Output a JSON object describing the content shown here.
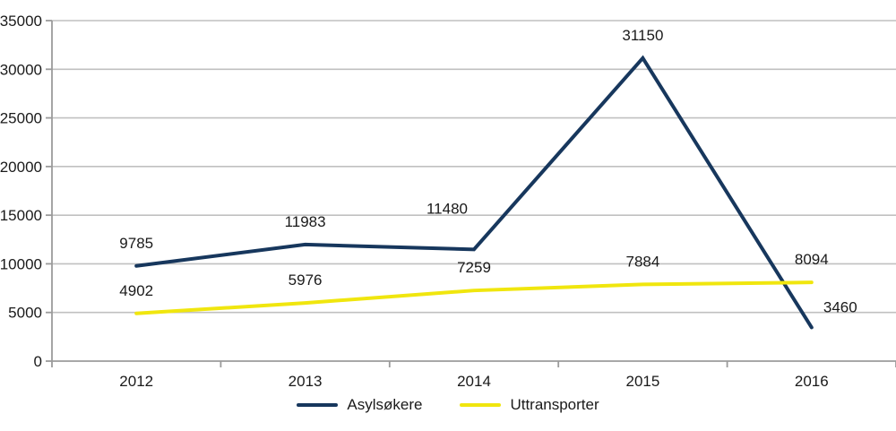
{
  "chart_data": {
    "type": "line",
    "categories": [
      "2012",
      "2013",
      "2014",
      "2015",
      "2016"
    ],
    "series": [
      {
        "name": "Asylsøkere",
        "values": [
          9785,
          11983,
          11480,
          31150,
          3460
        ],
        "color": "#17375D"
      },
      {
        "name": "Uttransporter",
        "values": [
          4902,
          5976,
          7259,
          7884,
          8094
        ],
        "color": "#F0E60E"
      }
    ],
    "data_labels": {
      "Asylsøkere": [
        "9785",
        "11983",
        "11480",
        "31150",
        "3460"
      ],
      "Uttransporter": [
        "4902",
        "5976",
        "7259",
        "7884",
        "8094"
      ]
    },
    "title": "",
    "xlabel": "",
    "ylabel": "",
    "ylim": [
      0,
      35000
    ],
    "ytick_step": 5000,
    "yticks": [
      "0",
      "5000",
      "10000",
      "15000",
      "20000",
      "25000",
      "30000",
      "35000"
    ],
    "grid": true,
    "legend_position": "bottom",
    "colors": {
      "gridline": "#C0C0C0",
      "axis": "#9B9B9B",
      "text": "#1A1A1A",
      "background": "#FFFFFF"
    }
  }
}
